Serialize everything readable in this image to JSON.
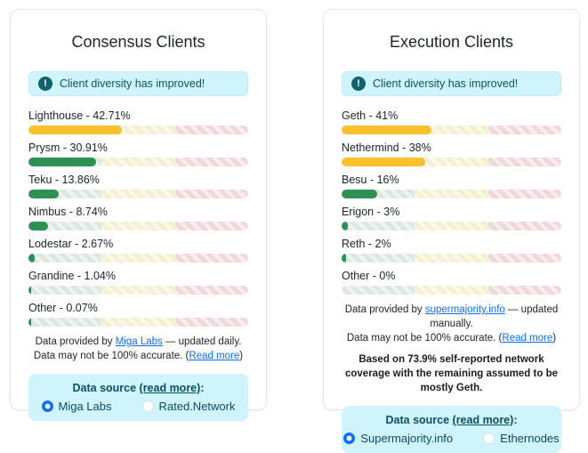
{
  "colors": {
    "accent_blue": "#0d6efd",
    "success_fill": "#2d9055",
    "warning_fill": "#fcc12c",
    "alert_bg": "#cff4fc",
    "alert_text": "#0c5460",
    "alert_icon_bg": "#13626b",
    "zone_green": "#dce8e1",
    "zone_yellow": "#f6efd1",
    "zone_red": "#efd9dc"
  },
  "chart_data": [
    {
      "type": "bar",
      "title": "Consensus Clients",
      "categories": [
        "Lighthouse",
        "Prysm",
        "Teku",
        "Nimbus",
        "Lodestar",
        "Grandine",
        "Other"
      ],
      "values": [
        42.71,
        30.91,
        13.86,
        8.74,
        2.67,
        1.04,
        0.07
      ],
      "xlim": [
        0,
        100
      ],
      "unit": "%"
    },
    {
      "type": "bar",
      "title": "Execution Clients",
      "categories": [
        "Geth",
        "Nethermind",
        "Besu",
        "Erigon",
        "Reth",
        "Other"
      ],
      "values": [
        41,
        38,
        16,
        3,
        2,
        0
      ],
      "xlim": [
        0,
        100
      ],
      "unit": "%"
    }
  ],
  "cards": [
    {
      "id": "consensus-clients",
      "title": "Consensus Clients",
      "alert_text": "Client diversity has improved!",
      "alert_icon": "!",
      "bars": [
        {
          "label": "Lighthouse - 42.71%",
          "value": 42.71,
          "level": "warning"
        },
        {
          "label": "Prysm - 30.91%",
          "value": 30.91,
          "level": "success"
        },
        {
          "label": "Teku - 13.86%",
          "value": 13.86,
          "level": "success"
        },
        {
          "label": "Nimbus - 8.74%",
          "value": 8.74,
          "level": "success"
        },
        {
          "label": "Lodestar - 2.67%",
          "value": 2.67,
          "level": "success"
        },
        {
          "label": "Grandine - 1.04%",
          "value": 1.04,
          "level": "success"
        },
        {
          "label": "Other - 0.07%",
          "value": 0.07,
          "level": "success"
        }
      ],
      "provider_note_line1": [
        {
          "t": "Data provided by "
        },
        {
          "link": "Miga Labs"
        },
        {
          "t": " — updated daily."
        }
      ],
      "provider_note_line2": [
        {
          "t": "Data may not be 100% accurate. ("
        },
        {
          "link": "Read more"
        },
        {
          "t": ")"
        }
      ],
      "coverage_note": "",
      "datasource": {
        "title_segments": [
          {
            "t": "Data source "
          },
          {
            "link": "(read more)"
          },
          {
            "t": ":"
          }
        ],
        "options": [
          {
            "label": "Miga Labs",
            "selected": true
          },
          {
            "label": "Rated.Network",
            "selected": false
          }
        ]
      }
    },
    {
      "id": "execution-clients",
      "title": "Execution Clients",
      "alert_text": "Client diversity has improved!",
      "alert_icon": "!",
      "bars": [
        {
          "label": "Geth - 41%",
          "value": 41,
          "level": "warning"
        },
        {
          "label": "Nethermind - 38%",
          "value": 38,
          "level": "warning"
        },
        {
          "label": "Besu - 16%",
          "value": 16,
          "level": "success"
        },
        {
          "label": "Erigon - 3%",
          "value": 3,
          "level": "success"
        },
        {
          "label": "Reth - 2%",
          "value": 2,
          "level": "success"
        },
        {
          "label": "Other - 0%",
          "value": 0,
          "level": "success"
        }
      ],
      "provider_note_line1": [
        {
          "t": "Data provided by "
        },
        {
          "link": "supermajority.info"
        },
        {
          "t": " — updated manually."
        }
      ],
      "provider_note_line2": [
        {
          "t": "Data may not be 100% accurate. ("
        },
        {
          "link": "Read more"
        },
        {
          "t": ")"
        }
      ],
      "coverage_note": "Based on 73.9% self-reported network coverage with the remaining assumed to be mostly Geth.",
      "datasource": {
        "title_segments": [
          {
            "t": "Data source "
          },
          {
            "link": "(read more)"
          },
          {
            "t": ":"
          }
        ],
        "options": [
          {
            "label": "Supermajority.info",
            "selected": true
          },
          {
            "label": "Ethernodes",
            "selected": false
          }
        ]
      }
    }
  ]
}
